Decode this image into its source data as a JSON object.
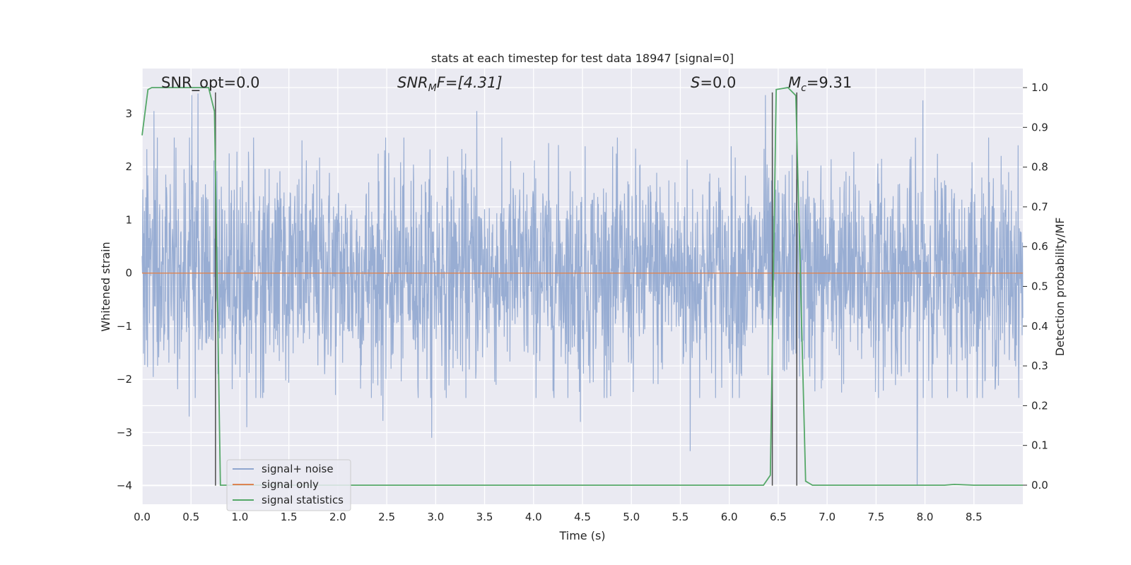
{
  "chart_data": {
    "type": "line",
    "title": "stats at each timestep for test data 18947 [signal=0]",
    "xlabel": "Time (s)",
    "ylabel": "Whitened strain",
    "ylabel_right": "Detection probability/MF",
    "xlim": [
      0.0,
      9.0
    ],
    "ylim": [
      -4.35,
      3.85
    ],
    "ylim_right": [
      -0.048,
      1.048
    ],
    "xticks": [
      "0.0",
      "0.5",
      "1.0",
      "1.5",
      "2.0",
      "2.5",
      "3.0",
      "3.5",
      "4.0",
      "4.5",
      "5.0",
      "5.5",
      "6.0",
      "6.5",
      "7.0",
      "7.5",
      "8.0",
      "8.5"
    ],
    "yticks_left": [
      "3",
      "2",
      "1",
      "0",
      "−1",
      "−2",
      "−3",
      "−4"
    ],
    "yticks_right": [
      "1.0",
      "0.9",
      "0.8",
      "0.7",
      "0.6",
      "0.5",
      "0.4",
      "0.3",
      "0.2",
      "0.1",
      "0.0"
    ],
    "grid": true,
    "legend": {
      "location": "lower-left",
      "entries": [
        {
          "label": "signal+ noise",
          "color": "#8fa6cf"
        },
        {
          "label": "signal only",
          "color": "#dd8452"
        },
        {
          "label": "signal statistics",
          "color": "#55a868"
        }
      ]
    },
    "annotations": {
      "snr_opt": {
        "text": "SNR_opt=0.0"
      },
      "snr_mf": {
        "base": "SNR",
        "sub": "M",
        "rest": "F=[4.31]"
      },
      "s": {
        "base": "S",
        "rest": "=0.0"
      },
      "mc": {
        "base": "M",
        "sub": "c",
        "rest": "=9.31"
      }
    },
    "series": [
      {
        "name": "signal+ noise",
        "color": "#8fa6cf",
        "description_level": "whitened noise, approx. Gaussian std 1, peaks to ±3.4",
        "peaks": [
          [
            0.51,
            3.35
          ],
          [
            0.57,
            3.38
          ],
          [
            0.12,
            3.05
          ],
          [
            2.96,
            3.15
          ],
          [
            3.42,
            3.05
          ],
          [
            6.37,
            3.35
          ],
          [
            7.98,
            3.25
          ],
          [
            0.48,
            -2.7
          ],
          [
            1.07,
            -2.9
          ],
          [
            2.96,
            -3.1
          ],
          [
            5.6,
            -3.35
          ],
          [
            7.92,
            -4.0
          ],
          [
            2.46,
            -2.78
          ],
          [
            4.48,
            -2.8
          ]
        ]
      },
      {
        "name": "signal only",
        "color": "#dd8452",
        "x": [
          0.0,
          9.0
        ],
        "y": [
          0.0,
          0.0
        ]
      },
      {
        "name": "signal statistics",
        "color": "#55a868",
        "axis": "right",
        "x": [
          0.0,
          0.06,
          0.1,
          0.2,
          0.3,
          0.4,
          0.5,
          0.6,
          0.68,
          0.74,
          0.8,
          0.9,
          1.0,
          2.0,
          3.0,
          4.0,
          5.0,
          6.0,
          6.35,
          6.42,
          6.48,
          6.6,
          6.68,
          6.73,
          6.78,
          6.85,
          7.0,
          8.0,
          8.2,
          8.3,
          8.5,
          9.0
        ],
        "y": [
          0.88,
          0.995,
          1.0,
          1.0,
          1.0,
          1.0,
          1.0,
          1.0,
          1.0,
          0.94,
          0.0,
          0.0,
          0.0,
          0.0,
          0.0,
          0.0,
          0.0,
          0.0,
          0.0,
          0.025,
          0.995,
          1.0,
          0.98,
          0.5,
          0.01,
          0.0,
          0.0,
          0.0,
          0.0,
          0.002,
          0.0,
          0.0
        ]
      }
    ],
    "vlines": [
      {
        "x": 0.75,
        "ymin": -4.0,
        "ymax": 3.4,
        "color": "#4d4d4d"
      },
      {
        "x": 6.44,
        "ymin": -4.0,
        "ymax": 3.4,
        "color": "#4d4d4d"
      },
      {
        "x": 6.69,
        "ymin": -4.0,
        "ymax": 3.4,
        "color": "#4d4d4d"
      }
    ]
  }
}
